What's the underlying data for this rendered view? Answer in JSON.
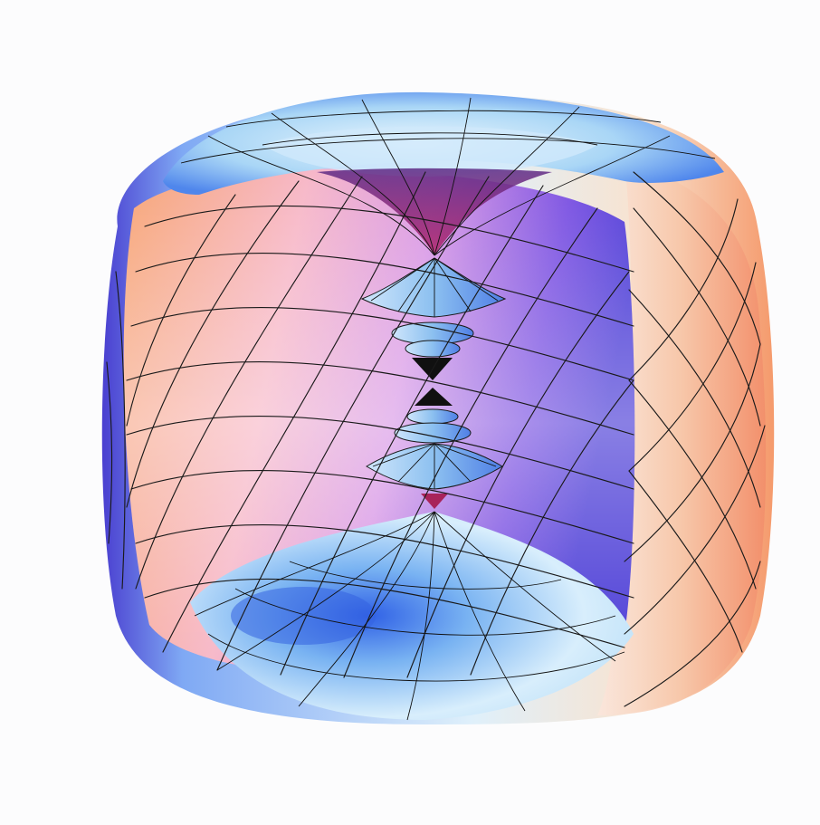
{
  "figure": {
    "kind": "3d-surface-render",
    "colors": {
      "background": "#fcfcfd",
      "outer_blue": "#5a8cf0",
      "outer_light": "#d7ecfb",
      "inner_orange": "#f6a27a",
      "inner_pink": "#f5b6d6",
      "inner_violet": "#6a3fd6",
      "rim_blue": "#8fc4f2",
      "mesh": "#1a1a1a"
    }
  }
}
